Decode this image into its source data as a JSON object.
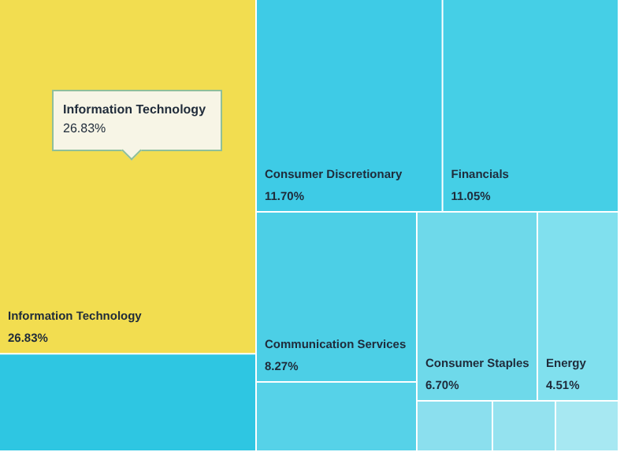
{
  "chart_data": {
    "type": "other",
    "categories": [
      "Information Technology",
      "Consumer Discretionary",
      "Financials",
      "Communication Services",
      "Consumer Staples",
      "Energy",
      null,
      null,
      null,
      null,
      null
    ],
    "values": [
      26.83,
      11.7,
      11.05,
      8.27,
      6.7,
      4.51,
      null,
      null,
      null,
      null,
      null
    ],
    "value_labels": [
      "26.83%",
      "11.70%",
      "11.05%",
      "8.27%",
      "6.70%",
      "4.51%",
      null,
      null,
      null,
      null,
      null
    ],
    "colors": [
      "#f2dd50",
      "#3ecbe6",
      "#45cfe6",
      "#4ccfe6",
      "#6ed9ea",
      "#80e0ee",
      "#2ec6e2",
      "#56d2e8",
      "#8bdfee",
      "#94e2ef",
      "#a7e8f2"
    ],
    "annotations": [
      "Information Technology\n26.83%"
    ]
  }
}
